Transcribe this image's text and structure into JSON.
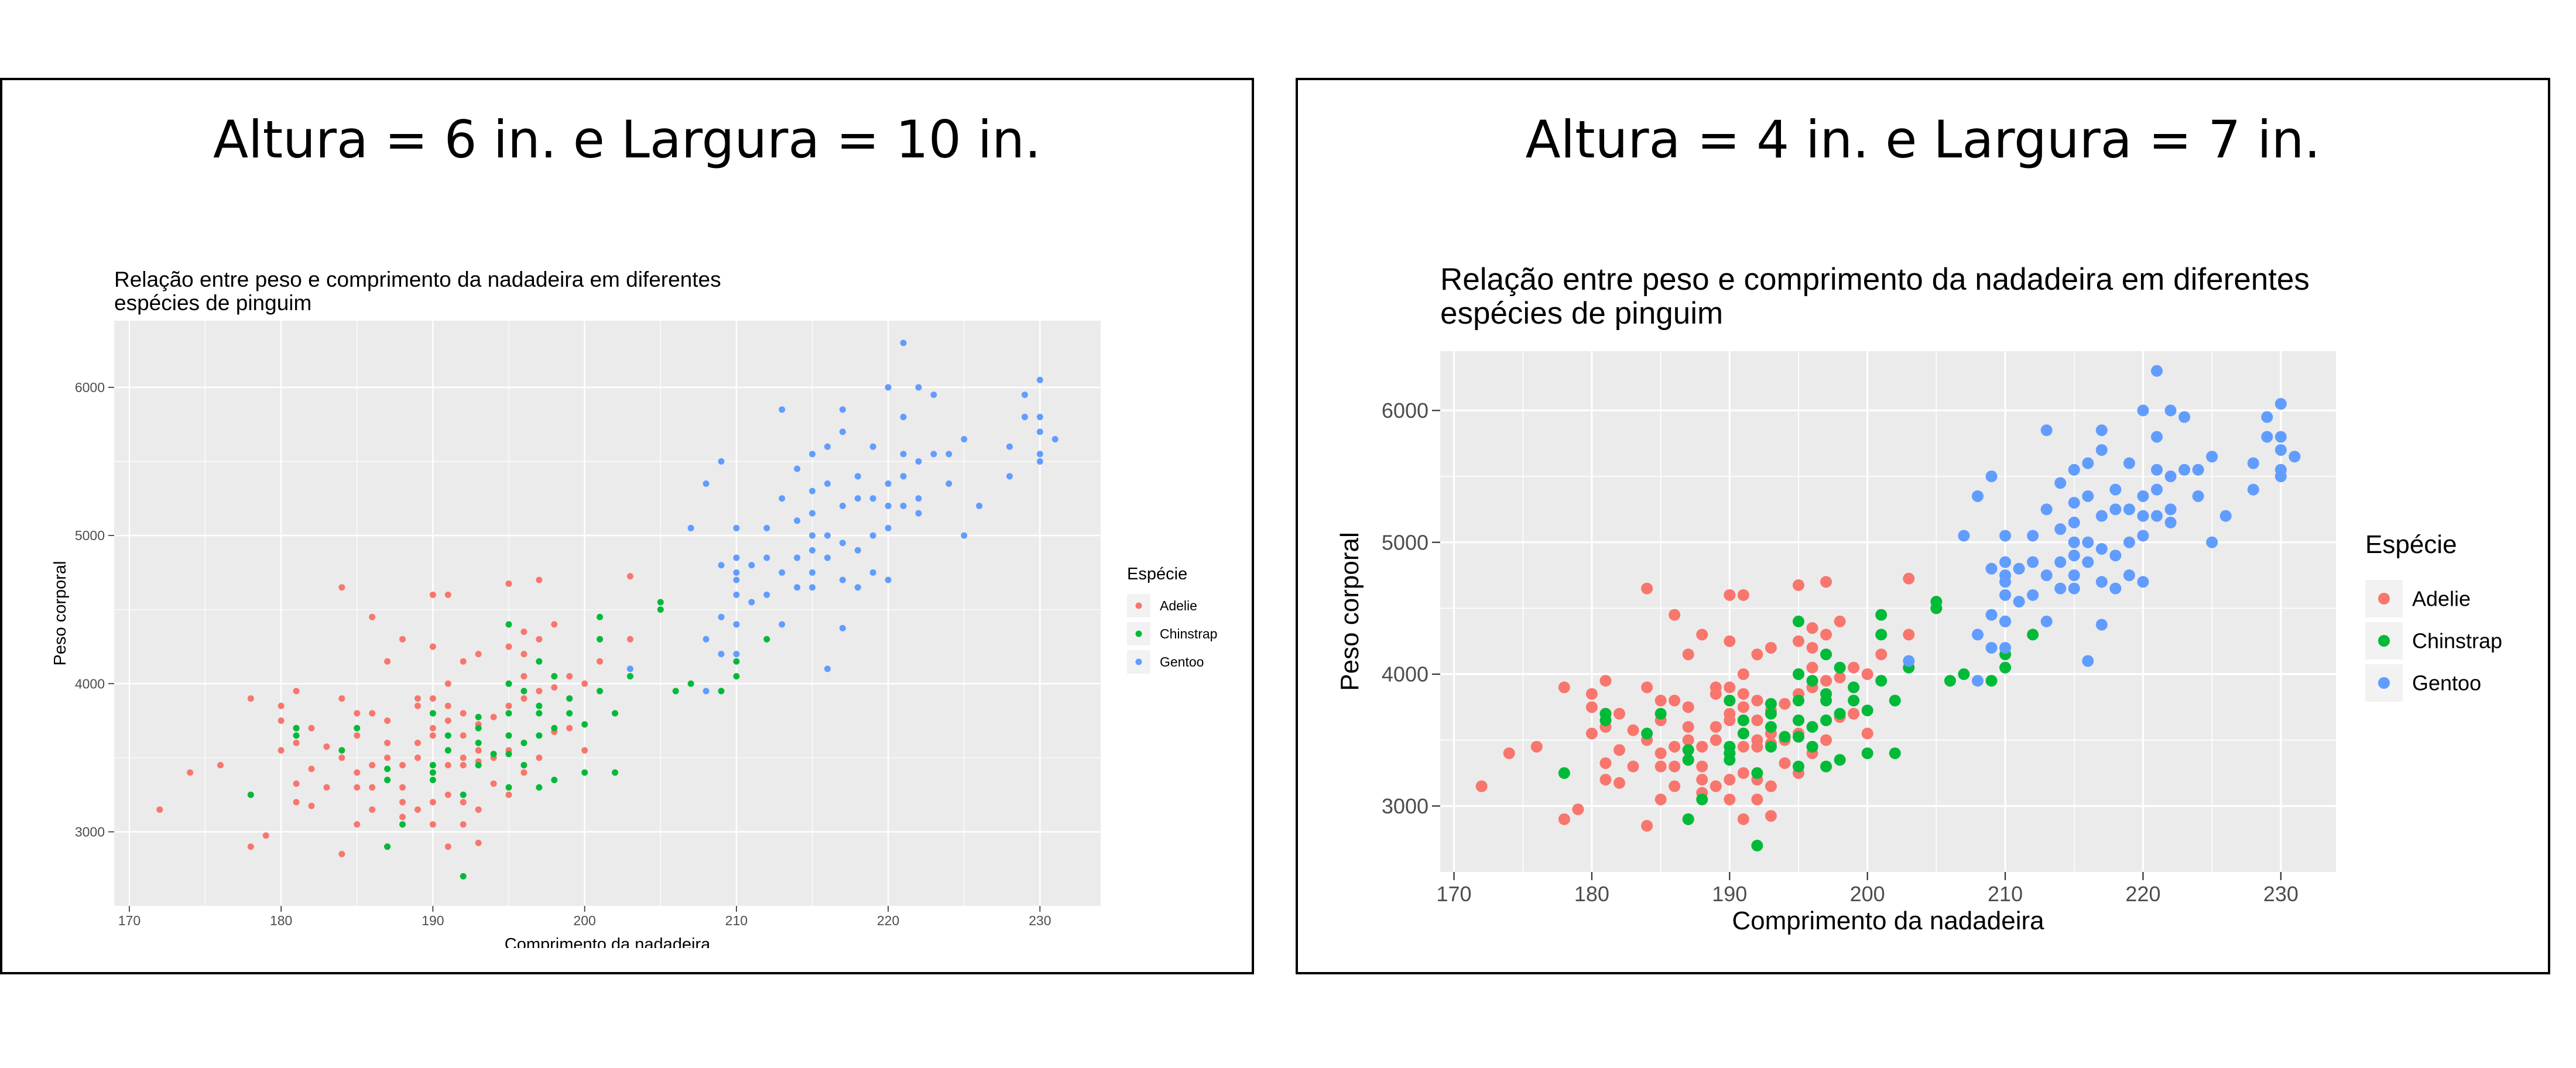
{
  "panels": [
    {
      "heading": "Altura = 6 in. e Largura = 10 in."
    },
    {
      "heading": "Altura = 4 in. e Largura = 7 in."
    }
  ],
  "chart_data": [
    {
      "type": "scatter",
      "title": "Relação entre peso e comprimento da nadadeira em diferentes espécies de pinguim",
      "title_lines": [
        "Relação entre peso e comprimento da nadadeira em diferentes",
        "espécies de pinguim"
      ],
      "xlabel": "Comprimento da nadadeira",
      "ylabel": "Peso corporal",
      "xlim": [
        169,
        234
      ],
      "ylim": [
        2500,
        6450
      ],
      "xticks": [
        170,
        180,
        190,
        200,
        210,
        220,
        230
      ],
      "yticks": [
        3000,
        4000,
        5000,
        6000
      ],
      "grid": true,
      "legend_title": "Espécie",
      "legend_position": "right",
      "series_ref": "penguins"
    },
    {
      "type": "scatter",
      "title": "Relação entre peso e comprimento da nadadeira em diferentes espécies de pinguim",
      "title_lines": [
        "Relação entre peso e comprimento da nadadeira em diferentes",
        "espécies de pinguim"
      ],
      "xlabel": "Comprimento da nadadeira",
      "ylabel": "Peso corporal",
      "xlim": [
        169,
        234
      ],
      "ylim": [
        2500,
        6450
      ],
      "xticks": [
        170,
        180,
        190,
        200,
        210,
        220,
        230
      ],
      "yticks": [
        3000,
        4000,
        5000,
        6000
      ],
      "grid": true,
      "legend_title": "Espécie",
      "legend_position": "right",
      "series_ref": "penguins"
    }
  ],
  "penguins": [
    {
      "name": "Adelie",
      "color": "#F8766D",
      "points": [
        [
          172,
          3150
        ],
        [
          174,
          3400
        ],
        [
          176,
          3450
        ],
        [
          178,
          2900
        ],
        [
          178,
          3900
        ],
        [
          179,
          2975
        ],
        [
          180,
          3550
        ],
        [
          180,
          3750
        ],
        [
          180,
          3850
        ],
        [
          181,
          3200
        ],
        [
          181,
          3325
        ],
        [
          181,
          3600
        ],
        [
          181,
          3700
        ],
        [
          181,
          3950
        ],
        [
          182,
          3425
        ],
        [
          182,
          3175
        ],
        [
          182,
          3700
        ],
        [
          183,
          3575
        ],
        [
          183,
          3300
        ],
        [
          184,
          3500
        ],
        [
          184,
          4650
        ],
        [
          184,
          2850
        ],
        [
          184,
          3900
        ],
        [
          185,
          3400
        ],
        [
          185,
          3650
        ],
        [
          185,
          3800
        ],
        [
          185,
          3300
        ],
        [
          185,
          3050
        ],
        [
          186,
          3150
        ],
        [
          186,
          3300
        ],
        [
          186,
          3450
        ],
        [
          186,
          3800
        ],
        [
          186,
          4450
        ],
        [
          187,
          2900
        ],
        [
          187,
          3350
        ],
        [
          187,
          3500
        ],
        [
          187,
          3600
        ],
        [
          187,
          3750
        ],
        [
          187,
          4150
        ],
        [
          188,
          3100
        ],
        [
          188,
          3200
        ],
        [
          188,
          3450
        ],
        [
          188,
          3300
        ],
        [
          188,
          4300
        ],
        [
          189,
          3150
        ],
        [
          189,
          3500
        ],
        [
          189,
          3600
        ],
        [
          189,
          3850
        ],
        [
          189,
          3900
        ],
        [
          190,
          3050
        ],
        [
          190,
          3200
        ],
        [
          190,
          3400
        ],
        [
          190,
          3450
        ],
        [
          190,
          3650
        ],
        [
          190,
          3700
        ],
        [
          190,
          3800
        ],
        [
          190,
          3900
        ],
        [
          190,
          4250
        ],
        [
          190,
          4600
        ],
        [
          191,
          2900
        ],
        [
          191,
          3250
        ],
        [
          191,
          3450
        ],
        [
          191,
          3550
        ],
        [
          191,
          3650
        ],
        [
          191,
          3750
        ],
        [
          191,
          3850
        ],
        [
          191,
          4000
        ],
        [
          191,
          4600
        ],
        [
          192,
          3050
        ],
        [
          192,
          3200
        ],
        [
          192,
          3450
        ],
        [
          192,
          3500
        ],
        [
          192,
          3650
        ],
        [
          192,
          3800
        ],
        [
          192,
          4150
        ],
        [
          193,
          2925
        ],
        [
          193,
          3150
        ],
        [
          193,
          3475
        ],
        [
          193,
          3550
        ],
        [
          193,
          3725
        ],
        [
          193,
          4200
        ],
        [
          194,
          3325
        ],
        [
          194,
          3500
        ],
        [
          194,
          3775
        ],
        [
          195,
          3250
        ],
        [
          195,
          3550
        ],
        [
          195,
          3850
        ],
        [
          195,
          4000
        ],
        [
          195,
          4250
        ],
        [
          195,
          4675
        ],
        [
          196,
          3400
        ],
        [
          196,
          3450
        ],
        [
          196,
          3900
        ],
        [
          196,
          4050
        ],
        [
          196,
          4200
        ],
        [
          196,
          4350
        ],
        [
          197,
          3500
        ],
        [
          197,
          3950
        ],
        [
          197,
          4300
        ],
        [
          197,
          4700
        ],
        [
          198,
          3675
        ],
        [
          198,
          3975
        ],
        [
          198,
          4400
        ],
        [
          199,
          3700
        ],
        [
          199,
          3900
        ],
        [
          199,
          4050
        ],
        [
          200,
          3550
        ],
        [
          200,
          4000
        ],
        [
          201,
          4150
        ],
        [
          203,
          4300
        ],
        [
          203,
          4725
        ]
      ]
    },
    {
      "name": "Chinstrap",
      "color": "#00BA38",
      "points": [
        [
          178,
          3250
        ],
        [
          181,
          3700
        ],
        [
          181,
          3650
        ],
        [
          184,
          3550
        ],
        [
          185,
          3700
        ],
        [
          187,
          3425
        ],
        [
          187,
          3350
        ],
        [
          187,
          2900
        ],
        [
          188,
          3050
        ],
        [
          190,
          3350
        ],
        [
          190,
          3400
        ],
        [
          190,
          3800
        ],
        [
          190,
          3450
        ],
        [
          191,
          3550
        ],
        [
          191,
          3650
        ],
        [
          192,
          2700
        ],
        [
          192,
          3250
        ],
        [
          193,
          3450
        ],
        [
          193,
          3775
        ],
        [
          193,
          3600
        ],
        [
          193,
          3700
        ],
        [
          194,
          3525
        ],
        [
          195,
          3525
        ],
        [
          195,
          3800
        ],
        [
          195,
          3300
        ],
        [
          195,
          3650
        ],
        [
          195,
          4000
        ],
        [
          195,
          4400
        ],
        [
          196,
          3600
        ],
        [
          196,
          3950
        ],
        [
          196,
          3450
        ],
        [
          197,
          3300
        ],
        [
          197,
          3650
        ],
        [
          197,
          3800
        ],
        [
          197,
          3850
        ],
        [
          197,
          4150
        ],
        [
          198,
          3350
        ],
        [
          198,
          3700
        ],
        [
          198,
          4050
        ],
        [
          199,
          3900
        ],
        [
          199,
          3800
        ],
        [
          200,
          3400
        ],
        [
          200,
          3725
        ],
        [
          201,
          3950
        ],
        [
          201,
          4450
        ],
        [
          201,
          4300
        ],
        [
          202,
          3400
        ],
        [
          202,
          3800
        ],
        [
          203,
          4050
        ],
        [
          205,
          4550
        ],
        [
          205,
          4500
        ],
        [
          206,
          3950
        ],
        [
          207,
          4000
        ],
        [
          209,
          3950
        ],
        [
          210,
          4050
        ],
        [
          212,
          4300
        ],
        [
          210,
          4150
        ]
      ]
    },
    {
      "name": "Gentoo",
      "color": "#619CFF",
      "points": [
        [
          203,
          4100
        ],
        [
          207,
          5050
        ],
        [
          208,
          3950
        ],
        [
          208,
          4300
        ],
        [
          208,
          5350
        ],
        [
          209,
          4800
        ],
        [
          209,
          4450
        ],
        [
          209,
          4200
        ],
        [
          209,
          5500
        ],
        [
          210,
          4400
        ],
        [
          210,
          4600
        ],
        [
          210,
          4700
        ],
        [
          210,
          4750
        ],
        [
          210,
          4850
        ],
        [
          210,
          4200
        ],
        [
          210,
          4400
        ],
        [
          210,
          5050
        ],
        [
          211,
          4550
        ],
        [
          211,
          4800
        ],
        [
          212,
          4600
        ],
        [
          212,
          4850
        ],
        [
          212,
          5050
        ],
        [
          213,
          4400
        ],
        [
          213,
          4750
        ],
        [
          213,
          5250
        ],
        [
          213,
          5850
        ],
        [
          214,
          4650
        ],
        [
          214,
          4850
        ],
        [
          214,
          5100
        ],
        [
          214,
          5450
        ],
        [
          215,
          4650
        ],
        [
          215,
          4750
        ],
        [
          215,
          4900
        ],
        [
          215,
          5000
        ],
        [
          215,
          5150
        ],
        [
          215,
          5300
        ],
        [
          215,
          5550
        ],
        [
          216,
          4100
        ],
        [
          216,
          4850
        ],
        [
          216,
          5000
        ],
        [
          216,
          5350
        ],
        [
          216,
          5600
        ],
        [
          217,
          4375
        ],
        [
          217,
          4700
        ],
        [
          217,
          4950
        ],
        [
          217,
          5200
        ],
        [
          217,
          5700
        ],
        [
          217,
          5850
        ],
        [
          218,
          4650
        ],
        [
          218,
          4900
        ],
        [
          218,
          5250
        ],
        [
          218,
          5400
        ],
        [
          219,
          4750
        ],
        [
          219,
          5000
        ],
        [
          219,
          5250
        ],
        [
          219,
          5600
        ],
        [
          220,
          4700
        ],
        [
          220,
          5050
        ],
        [
          220,
          5200
        ],
        [
          220,
          5350
        ],
        [
          220,
          6000
        ],
        [
          221,
          5200
        ],
        [
          221,
          5400
        ],
        [
          221,
          5550
        ],
        [
          221,
          5800
        ],
        [
          221,
          6300
        ],
        [
          222,
          5150
        ],
        [
          222,
          5250
        ],
        [
          222,
          5500
        ],
        [
          222,
          6000
        ],
        [
          223,
          5550
        ],
        [
          223,
          5950
        ],
        [
          224,
          5350
        ],
        [
          224,
          5550
        ],
        [
          225,
          5000
        ],
        [
          225,
          5650
        ],
        [
          226,
          5200
        ],
        [
          228,
          5400
        ],
        [
          228,
          5600
        ],
        [
          229,
          5800
        ],
        [
          229,
          5950
        ],
        [
          230,
          5500
        ],
        [
          230,
          5550
        ],
        [
          230,
          5700
        ],
        [
          230,
          5800
        ],
        [
          230,
          6050
        ],
        [
          231,
          5650
        ]
      ]
    }
  ]
}
